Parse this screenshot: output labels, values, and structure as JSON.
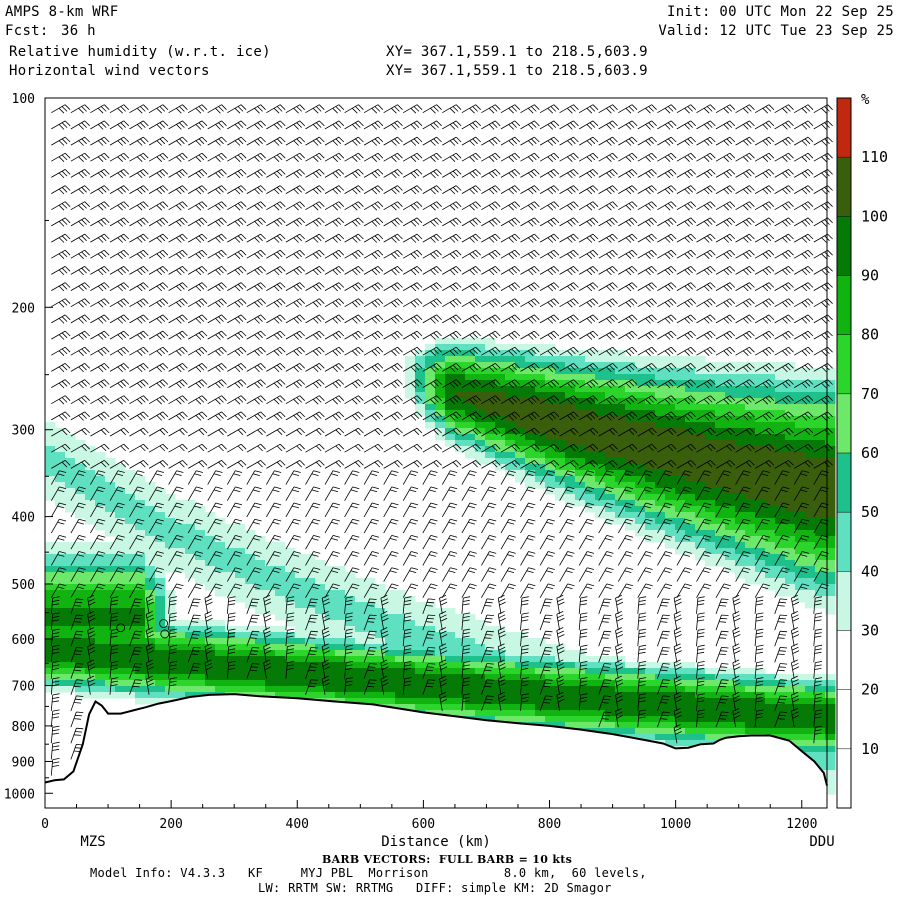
{
  "header": {
    "model": "AMPS 8-km WRF",
    "forecast_label": "Fcst:",
    "forecast_value": "36 h",
    "field1": "Relative humidity (w.r.t. ice)",
    "field2": "Horizontal wind vectors",
    "xy1": "XY= 367.1,559.1 to 218.5,603.9",
    "xy2": "XY= 367.1,559.1 to 218.5,603.9",
    "init": "Init: 00 UTC Mon 22 Sep 25",
    "valid": "Valid: 12 UTC Tue 23 Sep 25"
  },
  "footer": {
    "barb_note": "BARB VECTORS:  FULL BARB = 10 kts",
    "model_info": "Model Info: V4.3.3   KF     MYJ PBL  Morrison          8.0 km,  60 levels,",
    "physics": "LW: RRTM SW: RRTMG   DIFF: simple KM: 2D Smagor"
  },
  "colors": {
    "c10": "#ffffff",
    "c20": "#ffffff",
    "c30": "#c8f7e4",
    "c40": "#5fe0c1",
    "c50": "#1ec08c",
    "c60": "#6ee86b",
    "c70": "#2bd52b",
    "c80": "#10b310",
    "c90": "#067a06",
    "c100": "#3a5f0c",
    "c110": "#c12810",
    "terrain": "#ffffff",
    "barb": "#000000"
  },
  "chart_data": {
    "type": "heatmap",
    "title": "Relative humidity (w.r.t. ice)",
    "xlabel": "Distance (km)",
    "ylabel": "",
    "x_range": [
      0,
      1240
    ],
    "y_range": [
      1050,
      100
    ],
    "y_log_pressure": true,
    "x_ticks": [
      "0",
      "200",
      "400",
      "600",
      "800",
      "1000",
      "1200"
    ],
    "y_ticks": [
      "100",
      "200",
      "300",
      "400",
      "500",
      "600",
      "700",
      "800",
      "900",
      "1000"
    ],
    "endpoints": {
      "left": "MZS",
      "right": "DDU"
    },
    "colorbar": {
      "unit": "%",
      "levels": [
        "110",
        "100",
        "90",
        "80",
        "70",
        "60",
        "50",
        "40",
        "30",
        "20",
        "10"
      ],
      "bins": [
        0,
        10,
        20,
        30,
        40,
        50,
        60,
        70,
        80,
        90,
        100,
        110,
        120
      ]
    },
    "terrain_surface_hPa": {
      "distance_km": [
        0,
        15,
        30,
        45,
        60,
        70,
        80,
        90,
        100,
        120,
        140,
        160,
        180,
        200,
        230,
        260,
        300,
        340,
        400,
        460,
        520,
        560,
        600,
        650,
        700,
        750,
        800,
        850,
        900,
        950,
        980,
        1000,
        1020,
        1040,
        1060,
        1070,
        1080,
        1100,
        1120,
        1150,
        1180,
        1200,
        1220,
        1235,
        1240
      ],
      "pressure": [
        965,
        958,
        955,
        930,
        850,
        770,
        738,
        748,
        768,
        768,
        760,
        752,
        743,
        737,
        727,
        722,
        720,
        725,
        730,
        738,
        745,
        755,
        765,
        775,
        785,
        793,
        800,
        810,
        822,
        838,
        848,
        862,
        860,
        850,
        848,
        838,
        832,
        828,
        826,
        826,
        840,
        870,
        900,
        935,
        975
      ]
    },
    "moist_bands": [
      {
        "name": "upper band",
        "level_range_hPa": [
          240,
          490
        ],
        "x_range_km": [
          560,
          1240
        ],
        "peak_rh_percent": 105
      },
      {
        "name": "lower band",
        "level_range_hPa": [
          520,
          810
        ],
        "x_range_km": [
          30,
          1240
        ],
        "peak_rh_percent": 100
      },
      {
        "name": "west plume",
        "level_range_hPa": [
          420,
          760
        ],
        "x_range_km": [
          0,
          200
        ],
        "peak_rh_percent": 95
      }
    ],
    "barb_note": "FULL BARB = 10 kts"
  }
}
